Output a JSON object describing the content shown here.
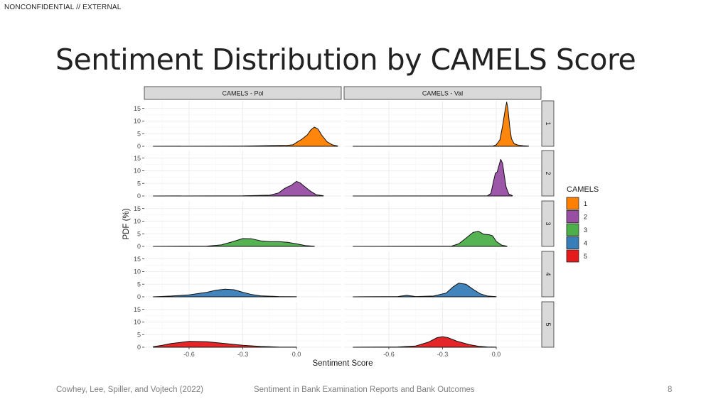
{
  "header": {
    "classification": "NONCONFIDENTIAL // EXTERNAL",
    "title": "Sentiment Distribution by CAMELS Score"
  },
  "footer": {
    "left": "Cowhey, Lee, Spiller, and Vojtech (2022)",
    "center": "Sentiment in Bank Examination Reports and Bank Outcomes",
    "page": "8"
  },
  "chart_data": {
    "type": "area",
    "subtype": "faceted density plot",
    "xlabel": "Sentiment Score",
    "ylabel": "PDF (%)",
    "xlim": [
      -0.85,
      0.25
    ],
    "ylim": [
      0,
      18
    ],
    "x_ticks": [
      -0.6,
      -0.3,
      0.0
    ],
    "x_tick_labels": [
      "-0.6",
      "-0.3",
      "0.0"
    ],
    "y_ticks": [
      0,
      5,
      10,
      15
    ],
    "y_tick_labels": [
      "0",
      "5",
      "10",
      "15"
    ],
    "grid": true,
    "column_facets": [
      "CAMELS - Pol",
      "CAMELS - Val"
    ],
    "row_facets": [
      "1",
      "2",
      "3",
      "4",
      "5"
    ],
    "legend": {
      "title": "CAMELS",
      "position": "right",
      "entries": [
        {
          "label": "1",
          "color": "#ff7f00"
        },
        {
          "label": "2",
          "color": "#984ea3"
        },
        {
          "label": "3",
          "color": "#4daf4a"
        },
        {
          "label": "4",
          "color": "#377eb8"
        },
        {
          "label": "5",
          "color": "#e41a1c"
        }
      ]
    },
    "panels": [
      {
        "row": "1",
        "col": "CAMELS - Pol",
        "color": "#ff7f00",
        "points": [
          [
            -0.8,
            0
          ],
          [
            -0.3,
            0.05
          ],
          [
            -0.05,
            0.4
          ],
          [
            -0.02,
            0.6
          ],
          [
            0.0,
            1.5
          ],
          [
            0.03,
            2.8
          ],
          [
            0.06,
            4.5
          ],
          [
            0.08,
            6.5
          ],
          [
            0.1,
            7.6
          ],
          [
            0.12,
            6.8
          ],
          [
            0.14,
            4.5
          ],
          [
            0.17,
            1.8
          ],
          [
            0.2,
            0.6
          ],
          [
            0.23,
            0.1
          ]
        ]
      },
      {
        "row": "1",
        "col": "CAMELS - Val",
        "color": "#ff7f00",
        "points": [
          [
            -0.8,
            0
          ],
          [
            -0.02,
            0.05
          ],
          [
            0.0,
            0.6
          ],
          [
            0.02,
            2.5
          ],
          [
            0.035,
            8
          ],
          [
            0.05,
            14.5
          ],
          [
            0.058,
            17.5
          ],
          [
            0.065,
            15
          ],
          [
            0.075,
            8
          ],
          [
            0.085,
            3
          ],
          [
            0.1,
            1
          ],
          [
            0.12,
            0.5
          ],
          [
            0.15,
            0.2
          ],
          [
            0.18,
            0.05
          ]
        ]
      },
      {
        "row": "2",
        "col": "CAMELS - Pol",
        "color": "#984ea3",
        "points": [
          [
            -0.8,
            0
          ],
          [
            -0.3,
            0.05
          ],
          [
            -0.15,
            0.3
          ],
          [
            -0.1,
            1.2
          ],
          [
            -0.07,
            2.8
          ],
          [
            -0.05,
            3.6
          ],
          [
            -0.03,
            4.2
          ],
          [
            0.0,
            5.8
          ],
          [
            0.02,
            5.2
          ],
          [
            0.05,
            3.5
          ],
          [
            0.08,
            1.8
          ],
          [
            0.11,
            0.5
          ],
          [
            0.15,
            0.1
          ]
        ]
      },
      {
        "row": "2",
        "col": "CAMELS - Val",
        "color": "#984ea3",
        "points": [
          [
            -0.8,
            0
          ],
          [
            -0.05,
            0.05
          ],
          [
            -0.03,
            1
          ],
          [
            -0.015,
            6
          ],
          [
            -0.005,
            9
          ],
          [
            0.005,
            9.5
          ],
          [
            0.015,
            12
          ],
          [
            0.025,
            14.5
          ],
          [
            0.035,
            13
          ],
          [
            0.045,
            8
          ],
          [
            0.055,
            3.5
          ],
          [
            0.07,
            0.8
          ],
          [
            0.09,
            0.1
          ]
        ]
      },
      {
        "row": "3",
        "col": "CAMELS - Pol",
        "color": "#4daf4a",
        "points": [
          [
            -0.8,
            0
          ],
          [
            -0.5,
            0.1
          ],
          [
            -0.42,
            0.6
          ],
          [
            -0.36,
            1.8
          ],
          [
            -0.3,
            3.1
          ],
          [
            -0.25,
            3.0
          ],
          [
            -0.2,
            2.2
          ],
          [
            -0.15,
            1.9
          ],
          [
            -0.1,
            1.9
          ],
          [
            -0.05,
            1.6
          ],
          [
            0.0,
            1.0
          ],
          [
            0.05,
            0.3
          ],
          [
            0.1,
            0.05
          ]
        ]
      },
      {
        "row": "3",
        "col": "CAMELS - Val",
        "color": "#4daf4a",
        "points": [
          [
            -0.8,
            0
          ],
          [
            -0.25,
            0.1
          ],
          [
            -0.21,
            1
          ],
          [
            -0.17,
            3.2
          ],
          [
            -0.13,
            5.5
          ],
          [
            -0.1,
            6.0
          ],
          [
            -0.07,
            4.8
          ],
          [
            -0.04,
            4.6
          ],
          [
            -0.02,
            4.2
          ],
          [
            0.0,
            2.0
          ],
          [
            0.03,
            0.5
          ],
          [
            0.06,
            0.05
          ]
        ]
      },
      {
        "row": "4",
        "col": "CAMELS - Pol",
        "color": "#377eb8",
        "points": [
          [
            -0.8,
            0
          ],
          [
            -0.7,
            0.3
          ],
          [
            -0.6,
            0.8
          ],
          [
            -0.5,
            1.8
          ],
          [
            -0.45,
            2.6
          ],
          [
            -0.4,
            3.0
          ],
          [
            -0.35,
            2.8
          ],
          [
            -0.3,
            1.8
          ],
          [
            -0.25,
            0.9
          ],
          [
            -0.2,
            0.4
          ],
          [
            -0.1,
            0.1
          ],
          [
            0.0,
            0.02
          ]
        ]
      },
      {
        "row": "4",
        "col": "CAMELS - Val",
        "color": "#377eb8",
        "points": [
          [
            -0.8,
            0
          ],
          [
            -0.55,
            0.1
          ],
          [
            -0.5,
            0.6
          ],
          [
            -0.45,
            0.1
          ],
          [
            -0.35,
            0.3
          ],
          [
            -0.28,
            1.5
          ],
          [
            -0.24,
            4.0
          ],
          [
            -0.21,
            5.4
          ],
          [
            -0.17,
            5.0
          ],
          [
            -0.13,
            3.0
          ],
          [
            -0.09,
            1.2
          ],
          [
            -0.05,
            0.3
          ],
          [
            0.0,
            0.05
          ]
        ]
      },
      {
        "row": "5",
        "col": "CAMELS - Pol",
        "color": "#e41a1c",
        "points": [
          [
            -0.8,
            0.2
          ],
          [
            -0.75,
            0.8
          ],
          [
            -0.7,
            1.5
          ],
          [
            -0.6,
            2.3
          ],
          [
            -0.5,
            2.2
          ],
          [
            -0.4,
            1.5
          ],
          [
            -0.3,
            0.8
          ],
          [
            -0.2,
            0.3
          ],
          [
            -0.1,
            0.08
          ],
          [
            0.0,
            0.02
          ]
        ]
      },
      {
        "row": "5",
        "col": "CAMELS - Val",
        "color": "#e41a1c",
        "points": [
          [
            -0.8,
            0
          ],
          [
            -0.55,
            0.1
          ],
          [
            -0.45,
            0.5
          ],
          [
            -0.38,
            2.0
          ],
          [
            -0.33,
            3.8
          ],
          [
            -0.3,
            4.2
          ],
          [
            -0.27,
            3.8
          ],
          [
            -0.22,
            2.4
          ],
          [
            -0.15,
            1.0
          ],
          [
            -0.1,
            0.4
          ],
          [
            -0.05,
            0.1
          ],
          [
            0.0,
            0.02
          ]
        ]
      }
    ]
  }
}
